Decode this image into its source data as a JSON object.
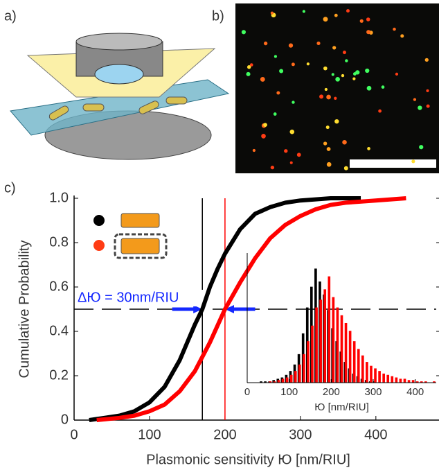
{
  "panel_labels": [
    "a)",
    "b)",
    "c)"
  ],
  "chart_data": {
    "type": "line",
    "xlabel": "Plasmonic sensitivity Ю [nm/RIU]",
    "ylabel": "Cumulative Probability",
    "annotation": "ΔЮ = 30nm/RIU",
    "xlim": [
      0,
      480
    ],
    "ylim": [
      0,
      1
    ],
    "xticks": [
      0,
      100,
      200,
      300,
      400
    ],
    "yticks": [
      0,
      0.2,
      0.4,
      0.6,
      0.8,
      {
        "value": 1,
        "label": "1.0"
      }
    ],
    "hline": 0.5,
    "vlines": [
      {
        "value": 170,
        "color": "#000000"
      },
      {
        "value": 200,
        "color": "#ff0000"
      }
    ],
    "series": [
      {
        "color": "#000000",
        "x": [
          20,
          40,
          60,
          80,
          100,
          120,
          140,
          150,
          160,
          170,
          180,
          190,
          200,
          220,
          240,
          260,
          280,
          300,
          340,
          380
        ],
        "values": [
          0,
          0.01,
          0.02,
          0.04,
          0.08,
          0.15,
          0.27,
          0.35,
          0.43,
          0.5,
          0.6,
          0.68,
          0.75,
          0.86,
          0.93,
          0.96,
          0.98,
          0.99,
          1,
          1
        ]
      },
      {
        "color": "#ff0000",
        "x": [
          30,
          60,
          80,
          100,
          120,
          140,
          160,
          180,
          200,
          220,
          240,
          260,
          280,
          300,
          320,
          340,
          360,
          400,
          440
        ],
        "values": [
          0,
          0.01,
          0.02,
          0.04,
          0.07,
          0.13,
          0.22,
          0.35,
          0.5,
          0.62,
          0.73,
          0.82,
          0.88,
          0.92,
          0.95,
          0.97,
          0.98,
          0.99,
          1
        ]
      }
    ],
    "inset": {
      "type": "histogram",
      "xlabel": "Ю [nm/RIU]",
      "xlim": [
        0,
        450
      ],
      "ylim": [
        0,
        100
      ],
      "xticks": [
        0,
        100,
        200,
        300,
        400
      ],
      "bins": [
        0,
        10,
        20,
        30,
        40,
        50,
        60,
        70,
        80,
        90,
        100,
        110,
        120,
        130,
        140,
        150,
        160,
        170,
        180,
        190,
        200,
        210,
        220,
        230,
        240,
        250,
        260,
        270,
        280,
        290,
        300,
        310,
        320,
        330,
        340,
        350,
        360,
        370,
        380,
        390,
        400,
        410,
        420,
        430,
        440,
        450
      ],
      "series": [
        {
          "color": "#000000",
          "values": [
            0,
            0,
            0,
            1,
            1,
            1,
            2,
            3,
            4,
            6,
            9,
            14,
            22,
            38,
            58,
            74,
            88,
            78,
            68,
            56,
            42,
            32,
            24,
            16,
            11,
            7,
            5,
            3,
            2,
            1,
            1,
            0,
            0,
            0,
            0,
            0,
            0,
            0,
            0,
            0,
            0,
            0,
            0,
            0,
            0
          ]
        },
        {
          "color": "#ff0000",
          "values": [
            0,
            0,
            0,
            0,
            0,
            1,
            1,
            2,
            3,
            4,
            6,
            9,
            14,
            22,
            32,
            44,
            58,
            64,
            72,
            82,
            66,
            58,
            52,
            46,
            40,
            32,
            26,
            21,
            16,
            13,
            11,
            9,
            7,
            6,
            5,
            4,
            3,
            3,
            2,
            2,
            1,
            1,
            1,
            0,
            1
          ]
        }
      ]
    }
  }
}
